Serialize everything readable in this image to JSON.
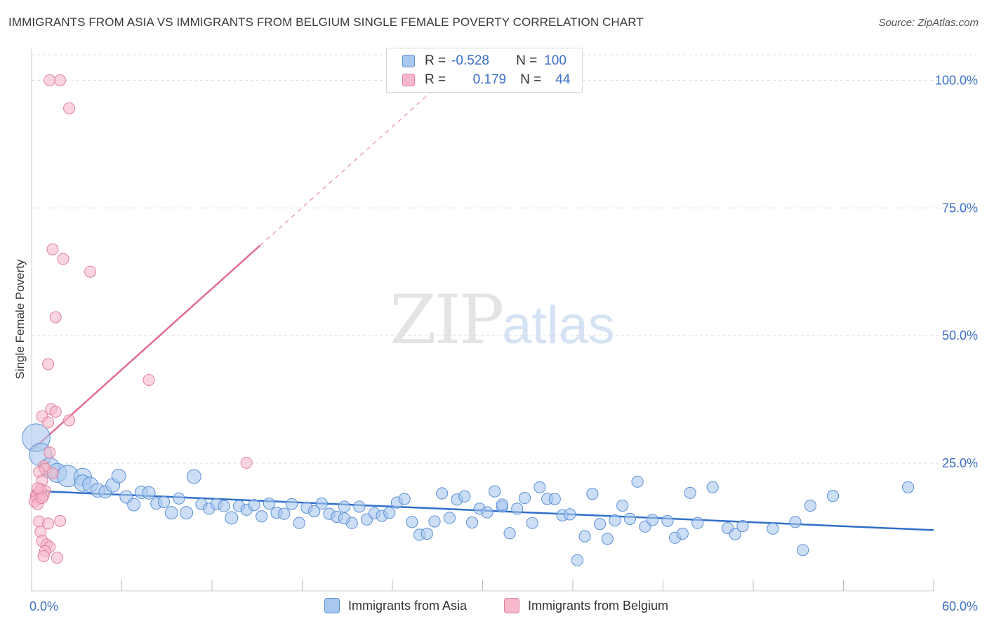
{
  "title": "IMMIGRANTS FROM ASIA VS IMMIGRANTS FROM BELGIUM SINGLE FEMALE POVERTY CORRELATION CHART",
  "source": "Source: ZipAtlas.com",
  "watermark": {
    "part1": "ZIP",
    "part2": "atlas"
  },
  "legend_box": {
    "rows": [
      {
        "r_label": "R =",
        "r_value": "-0.528",
        "n_label": "N =",
        "n_value": "100"
      },
      {
        "r_label": "R =",
        "r_value": "0.179",
        "n_label": "N =",
        "n_value": "44"
      }
    ]
  },
  "bottom_legend": [
    "Immigrants from Asia",
    "Immigrants from Belgium"
  ],
  "colors": {
    "asia_fill": "#a9c8ee",
    "asia_stroke": "#5b8fd6",
    "asia_line": "#2f6fc9",
    "belgium_fill": "#f6b9cb",
    "belgium_stroke": "#e0819e",
    "belgium_line": "#e46c93",
    "axis_text": "#3b6fc9",
    "grid": "#dddddd"
  },
  "chart_data": {
    "type": "scatter",
    "title": "IMMIGRANTS FROM ASIA VS IMMIGRANTS FROM BELGIUM SINGLE FEMALE POVERTY CORRELATION CHART",
    "xlabel": "",
    "ylabel": "Single Female Poverty",
    "xlim": [
      0,
      60
    ],
    "ylim": [
      0,
      105
    ],
    "x_tick_labels": [
      "0.0%",
      "60.0%"
    ],
    "y_ticks": [
      25,
      50,
      75,
      100
    ],
    "y_tick_labels": [
      "25.0%",
      "50.0%",
      "75.0%",
      "100.0%"
    ],
    "grid": true,
    "legend_position": "top-center",
    "series": [
      {
        "name": "Immigrants from Asia",
        "r": -0.528,
        "n": 100,
        "trend": {
          "x0": 0,
          "y0": 19.6,
          "x1": 60,
          "y1": 11.9
        },
        "points": [
          [
            0.3,
            30.0,
            2.2
          ],
          [
            0.6,
            26.7,
            1.8
          ],
          [
            1.2,
            24.1,
            1.6
          ],
          [
            1.7,
            23.1,
            1.5
          ],
          [
            2.4,
            22.5,
            1.7
          ],
          [
            3.4,
            22.3,
            1.4
          ],
          [
            3.4,
            21.1,
            1.3
          ],
          [
            3.9,
            20.8,
            1.2
          ],
          [
            4.4,
            19.7,
            1.1
          ],
          [
            4.9,
            19.4,
            1.0
          ],
          [
            5.4,
            20.7,
            1.1
          ],
          [
            5.8,
            22.5,
            1.1
          ],
          [
            6.3,
            18.4,
            1.0
          ],
          [
            6.8,
            16.9,
            1.0
          ],
          [
            7.3,
            19.3,
            1.0
          ],
          [
            7.8,
            19.2,
            1.0
          ],
          [
            8.3,
            17.1,
            0.9
          ],
          [
            8.8,
            17.4,
            0.9
          ],
          [
            9.3,
            15.3,
            1.0
          ],
          [
            9.8,
            18.1,
            0.9
          ],
          [
            10.3,
            15.3,
            1.0
          ],
          [
            10.8,
            22.4,
            1.1
          ],
          [
            11.3,
            17.0,
            0.9
          ],
          [
            11.8,
            16.1,
            0.9
          ],
          [
            12.3,
            17.0,
            0.9
          ],
          [
            12.8,
            16.6,
            0.9
          ],
          [
            13.3,
            14.3,
            1.0
          ],
          [
            13.8,
            16.6,
            0.9
          ],
          [
            14.3,
            15.9,
            0.9
          ],
          [
            14.8,
            16.8,
            0.9
          ],
          [
            15.3,
            14.6,
            0.9
          ],
          [
            15.8,
            17.1,
            0.9
          ],
          [
            16.3,
            15.3,
            0.9
          ],
          [
            16.8,
            15.1,
            0.9
          ],
          [
            17.3,
            17.0,
            0.9
          ],
          [
            17.8,
            13.3,
            0.9
          ],
          [
            18.3,
            16.3,
            0.9
          ],
          [
            18.8,
            15.6,
            0.9
          ],
          [
            19.3,
            17.1,
            0.9
          ],
          [
            19.8,
            15.1,
            0.9
          ],
          [
            20.3,
            14.5,
            0.9
          ],
          [
            20.8,
            16.5,
            0.9
          ],
          [
            21.3,
            13.3,
            0.9
          ],
          [
            21.8,
            16.5,
            0.9
          ],
          [
            22.3,
            14.0,
            0.9
          ],
          [
            22.8,
            15.2,
            0.9
          ],
          [
            23.3,
            14.7,
            0.9
          ],
          [
            23.8,
            15.3,
            0.9
          ],
          [
            24.3,
            17.3,
            0.9
          ],
          [
            24.8,
            18.0,
            0.9
          ],
          [
            25.3,
            13.5,
            0.9
          ],
          [
            25.8,
            11.0,
            0.9
          ],
          [
            26.3,
            11.2,
            0.9
          ],
          [
            26.8,
            13.6,
            0.9
          ],
          [
            27.3,
            19.1,
            0.9
          ],
          [
            27.8,
            14.3,
            0.9
          ],
          [
            28.3,
            17.9,
            0.9
          ],
          [
            28.8,
            18.5,
            0.9
          ],
          [
            29.3,
            13.4,
            0.9
          ],
          [
            29.8,
            16.1,
            0.9
          ],
          [
            30.3,
            15.4,
            0.9
          ],
          [
            30.8,
            19.5,
            0.9
          ],
          [
            31.3,
            16.5,
            0.9
          ],
          [
            31.8,
            11.3,
            0.9
          ],
          [
            32.3,
            16.1,
            0.9
          ],
          [
            32.8,
            18.2,
            0.9
          ],
          [
            33.3,
            13.3,
            0.9
          ],
          [
            33.8,
            20.3,
            0.9
          ],
          [
            34.3,
            18.0,
            0.9
          ],
          [
            34.8,
            18.0,
            0.9
          ],
          [
            35.3,
            14.8,
            0.9
          ],
          [
            35.8,
            15.0,
            0.9
          ],
          [
            36.3,
            6.0,
            0.9
          ],
          [
            36.8,
            10.7,
            0.9
          ],
          [
            37.3,
            19.0,
            0.9
          ],
          [
            37.8,
            13.1,
            0.9
          ],
          [
            38.3,
            10.2,
            0.9
          ],
          [
            38.8,
            13.8,
            0.9
          ],
          [
            39.3,
            16.7,
            0.9
          ],
          [
            39.8,
            14.1,
            0.9
          ],
          [
            40.3,
            21.4,
            0.9
          ],
          [
            40.8,
            12.6,
            0.9
          ],
          [
            41.3,
            13.9,
            0.9
          ],
          [
            42.3,
            13.7,
            0.9
          ],
          [
            42.8,
            10.4,
            0.9
          ],
          [
            43.3,
            11.2,
            0.9
          ],
          [
            43.8,
            19.2,
            0.9
          ],
          [
            44.3,
            13.3,
            0.9
          ],
          [
            45.3,
            20.3,
            0.9
          ],
          [
            46.3,
            12.3,
            0.9
          ],
          [
            46.8,
            11.1,
            0.9
          ],
          [
            47.3,
            12.7,
            0.9
          ],
          [
            49.3,
            12.2,
            0.9
          ],
          [
            50.8,
            13.5,
            0.9
          ],
          [
            51.3,
            8.0,
            0.9
          ],
          [
            51.8,
            16.7,
            0.9
          ],
          [
            53.3,
            18.6,
            0.9
          ],
          [
            58.3,
            20.3,
            0.9
          ],
          [
            31.3,
            16.9,
            0.9
          ],
          [
            20.8,
            14.2,
            0.9
          ]
        ]
      },
      {
        "name": "Immigrants from Belgium",
        "r": 0.179,
        "n": 44,
        "trend": {
          "x0": 0,
          "y0": 27.5,
          "x1": 60,
          "y1": 186.0,
          "solid_until_x": 15.2
        },
        "points": [
          [
            1.2,
            100.0
          ],
          [
            1.9,
            100.0
          ],
          [
            2.5,
            94.5
          ],
          [
            1.4,
            66.9
          ],
          [
            2.1,
            65.0
          ],
          [
            3.9,
            62.5
          ],
          [
            1.6,
            53.6
          ],
          [
            1.1,
            44.4
          ],
          [
            7.8,
            41.3
          ],
          [
            1.3,
            35.6
          ],
          [
            0.7,
            34.2
          ],
          [
            1.6,
            35.1
          ],
          [
            1.1,
            33.0
          ],
          [
            2.5,
            33.4
          ],
          [
            14.3,
            25.1
          ],
          [
            0.8,
            24.4
          ],
          [
            1.2,
            27.1
          ],
          [
            0.9,
            23.9
          ],
          [
            0.5,
            23.3
          ],
          [
            1.4,
            23.0
          ],
          [
            0.7,
            21.6
          ],
          [
            0.9,
            19.6
          ],
          [
            0.5,
            19.4
          ],
          [
            0.4,
            19.1
          ],
          [
            0.3,
            18.7
          ],
          [
            0.6,
            18.5
          ],
          [
            0.8,
            18.8
          ],
          [
            0.3,
            18.3
          ],
          [
            0.5,
            18.0
          ],
          [
            0.2,
            17.5
          ],
          [
            0.4,
            17.0
          ],
          [
            0.6,
            19.9
          ],
          [
            0.5,
            13.6
          ],
          [
            1.9,
            13.7
          ],
          [
            0.6,
            11.6
          ],
          [
            1.1,
            13.2
          ],
          [
            0.7,
            9.8
          ],
          [
            1.0,
            9.1
          ],
          [
            1.2,
            8.6
          ],
          [
            0.9,
            7.8
          ],
          [
            0.8,
            6.8
          ],
          [
            1.7,
            6.5
          ],
          [
            0.4,
            20.1
          ],
          [
            0.7,
            18.2
          ]
        ]
      }
    ]
  }
}
